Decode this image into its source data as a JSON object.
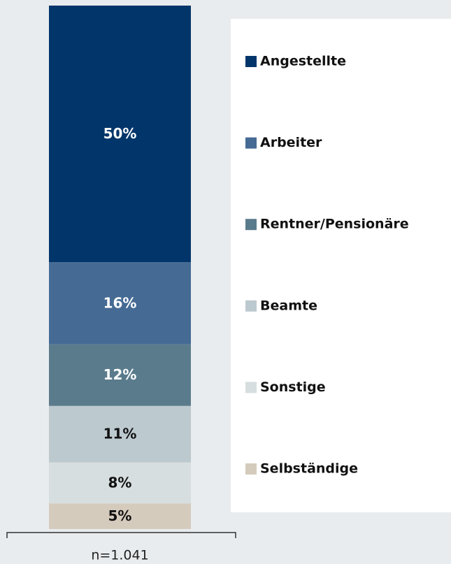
{
  "chart_data": {
    "type": "stacked-bar",
    "categories": [
      "n=1.041"
    ],
    "series": [
      {
        "name": "Angestellte",
        "color": "#02356a",
        "values": [
          50
        ],
        "value_labels": [
          "50%"
        ]
      },
      {
        "name": "Arbeiter",
        "color": "#456a94",
        "values": [
          16
        ],
        "value_labels": [
          "16%"
        ]
      },
      {
        "name": "Rentner/Pensionäre",
        "color": "#5a7b8c",
        "values": [
          12
        ],
        "value_labels": [
          "12%"
        ]
      },
      {
        "name": "Beamte",
        "color": "#bcc9cf",
        "values": [
          11
        ],
        "value_labels": [
          "11%"
        ]
      },
      {
        "name": "Sonstige",
        "color": "#d7dedf",
        "values": [
          8
        ],
        "value_labels": [
          "8%"
        ]
      },
      {
        "name": "Selbständige",
        "color": "#d5cbbd",
        "values": [
          5
        ],
        "value_labels": [
          "5%"
        ]
      }
    ]
  }
}
